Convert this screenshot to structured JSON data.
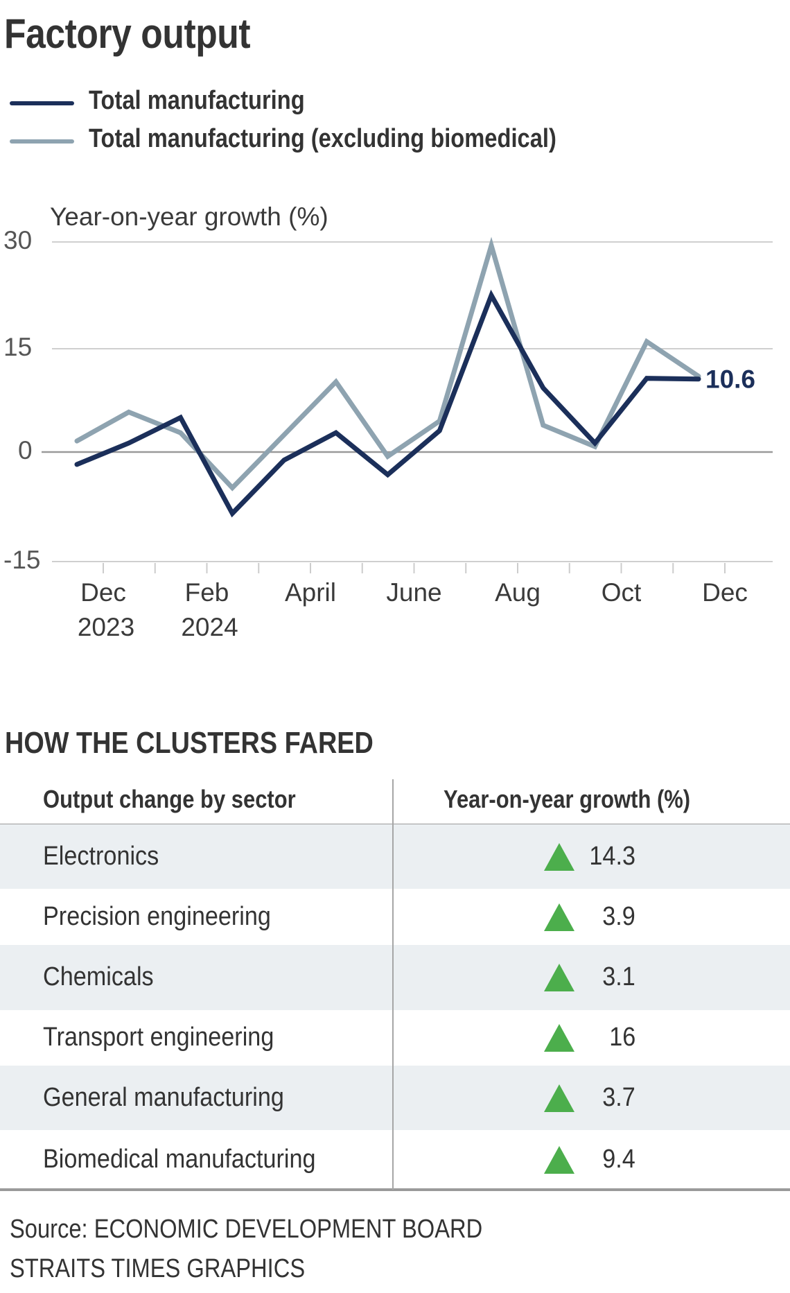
{
  "title": "Factory output",
  "legend": [
    {
      "label": "Total manufacturing",
      "color": "#1b2f5a"
    },
    {
      "label": "Total manufacturing (excluding biomedical)",
      "color": "#8ea3b0"
    }
  ],
  "chart_data": {
    "type": "line",
    "title": "Factory output",
    "ylabel": "Year-on-year growth (%)",
    "xlabel": "",
    "ylim": [
      -15,
      30
    ],
    "yticks": [
      30,
      15,
      0,
      -15
    ],
    "grid": true,
    "legend_position": "top-left",
    "x": [
      "Dec 2023",
      "Jan 2024",
      "Feb 2024",
      "Mar 2024",
      "Apr 2024",
      "May 2024",
      "Jun 2024",
      "Jul 2024",
      "Aug 2024",
      "Sep 2024",
      "Oct 2024",
      "Nov 2024",
      "Dec 2024"
    ],
    "xtick_labels": [
      {
        "line1": "Dec",
        "line2": "2023"
      },
      {
        "line1": "Feb",
        "line2": "2024"
      },
      {
        "line1": "April",
        "line2": ""
      },
      {
        "line1": "June",
        "line2": ""
      },
      {
        "line1": "Aug",
        "line2": ""
      },
      {
        "line1": "Oct",
        "line2": ""
      },
      {
        "line1": "Dec",
        "line2": ""
      }
    ],
    "series": [
      {
        "name": "Total manufacturing",
        "color": "#1b2f5a",
        "values": [
          -1.7,
          1.3,
          5.0,
          -8.4,
          -1.1,
          2.8,
          -3.1,
          3.1,
          22.5,
          9.3,
          1.3,
          10.7,
          10.6
        ]
      },
      {
        "name": "Total manufacturing (excluding biomedical)",
        "color": "#8ea3b0",
        "values": [
          1.6,
          5.8,
          2.8,
          -4.9,
          2.5,
          10.2,
          -0.6,
          4.5,
          29.5,
          3.9,
          0.8,
          16.0,
          11.0
        ]
      }
    ],
    "annotations": [
      {
        "series": "Total manufacturing",
        "point": "Dec 2024",
        "text": "10.6"
      }
    ]
  },
  "clusters": {
    "heading": "HOW THE CLUSTERS FARED",
    "columns": [
      "Output change by sector",
      "Year-on-year growth (%)"
    ],
    "rows": [
      {
        "sector": "Electronics",
        "growth": "14.3",
        "direction": "up"
      },
      {
        "sector": "Precision engineering",
        "growth": "3.9",
        "direction": "up"
      },
      {
        "sector": "Chemicals",
        "growth": "3.1",
        "direction": "up"
      },
      {
        "sector": "Transport engineering",
        "growth": "16",
        "direction": "up"
      },
      {
        "sector": "General manufacturing",
        "growth": "3.7",
        "direction": "up"
      },
      {
        "sector": "Biomedical manufacturing",
        "growth": "9.4",
        "direction": "up"
      }
    ],
    "up_color": "#4cae4c"
  },
  "footer": {
    "source": "Source: ECONOMIC DEVELOPMENT BOARD",
    "credit": "STRAITS TIMES GRAPHICS"
  }
}
